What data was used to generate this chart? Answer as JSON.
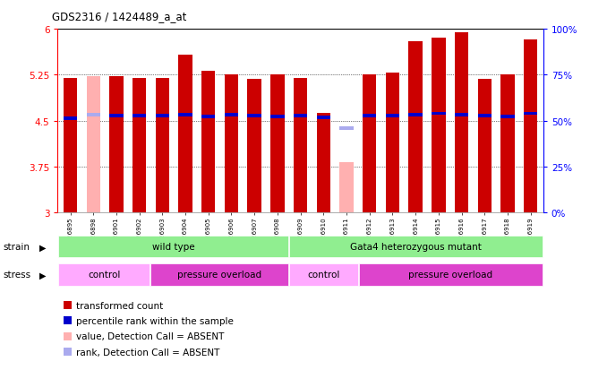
{
  "title": "GDS2316 / 1424489_a_at",
  "samples": [
    "GSM126895",
    "GSM126898",
    "GSM126901",
    "GSM126902",
    "GSM126903",
    "GSM126904",
    "GSM126905",
    "GSM126906",
    "GSM126907",
    "GSM126908",
    "GSM126909",
    "GSM126910",
    "GSM126911",
    "GSM126912",
    "GSM126913",
    "GSM126914",
    "GSM126915",
    "GSM126916",
    "GSM126917",
    "GSM126918",
    "GSM126919"
  ],
  "bar_values": [
    5.2,
    5.22,
    5.22,
    5.2,
    5.2,
    5.58,
    5.32,
    5.25,
    5.18,
    5.25,
    5.2,
    4.62,
    3.82,
    5.25,
    5.28,
    5.8,
    5.85,
    5.95,
    5.18,
    5.25,
    5.82
  ],
  "rank_values": [
    4.54,
    4.6,
    4.58,
    4.58,
    4.58,
    4.6,
    4.57,
    4.6,
    4.58,
    4.57,
    4.58,
    4.55,
    4.38,
    4.58,
    4.58,
    4.6,
    4.62,
    4.6,
    4.58,
    4.57,
    4.62
  ],
  "absent_flags": [
    false,
    true,
    false,
    false,
    false,
    false,
    false,
    false,
    false,
    false,
    false,
    false,
    true,
    false,
    false,
    false,
    false,
    false,
    false,
    false,
    false
  ],
  "bar_color": "#cc0000",
  "absent_bar_color": "#ffb0b0",
  "rank_color": "#0000cc",
  "absent_rank_color": "#aaaaee",
  "ylim_left": [
    3,
    6
  ],
  "yticks_left": [
    3,
    3.75,
    4.5,
    5.25,
    6
  ],
  "dotted_lines": [
    3.75,
    4.5,
    5.25
  ],
  "strain_groups": [
    {
      "label": "wild type",
      "start": 0,
      "end": 10,
      "color": "#90ee90"
    },
    {
      "label": "Gata4 heterozygous mutant",
      "start": 10,
      "end": 21,
      "color": "#90ee90"
    }
  ],
  "stress_groups": [
    {
      "label": "control",
      "start": 0,
      "end": 4,
      "color": "#ffaaff"
    },
    {
      "label": "pressure overload",
      "start": 4,
      "end": 10,
      "color": "#dd44cc"
    },
    {
      "label": "control",
      "start": 10,
      "end": 13,
      "color": "#ffaaff"
    },
    {
      "label": "pressure overload",
      "start": 13,
      "end": 21,
      "color": "#dd44cc"
    }
  ],
  "legend_items": [
    {
      "label": "transformed count",
      "color": "#cc0000"
    },
    {
      "label": "percentile rank within the sample",
      "color": "#0000cc"
    },
    {
      "label": "value, Detection Call = ABSENT",
      "color": "#ffb0b0"
    },
    {
      "label": "rank, Detection Call = ABSENT",
      "color": "#aaaaee"
    }
  ],
  "bar_width": 0.6,
  "rank_thickness": 0.055,
  "facecolor": "#ffffff",
  "plot_bg": "#ffffff"
}
